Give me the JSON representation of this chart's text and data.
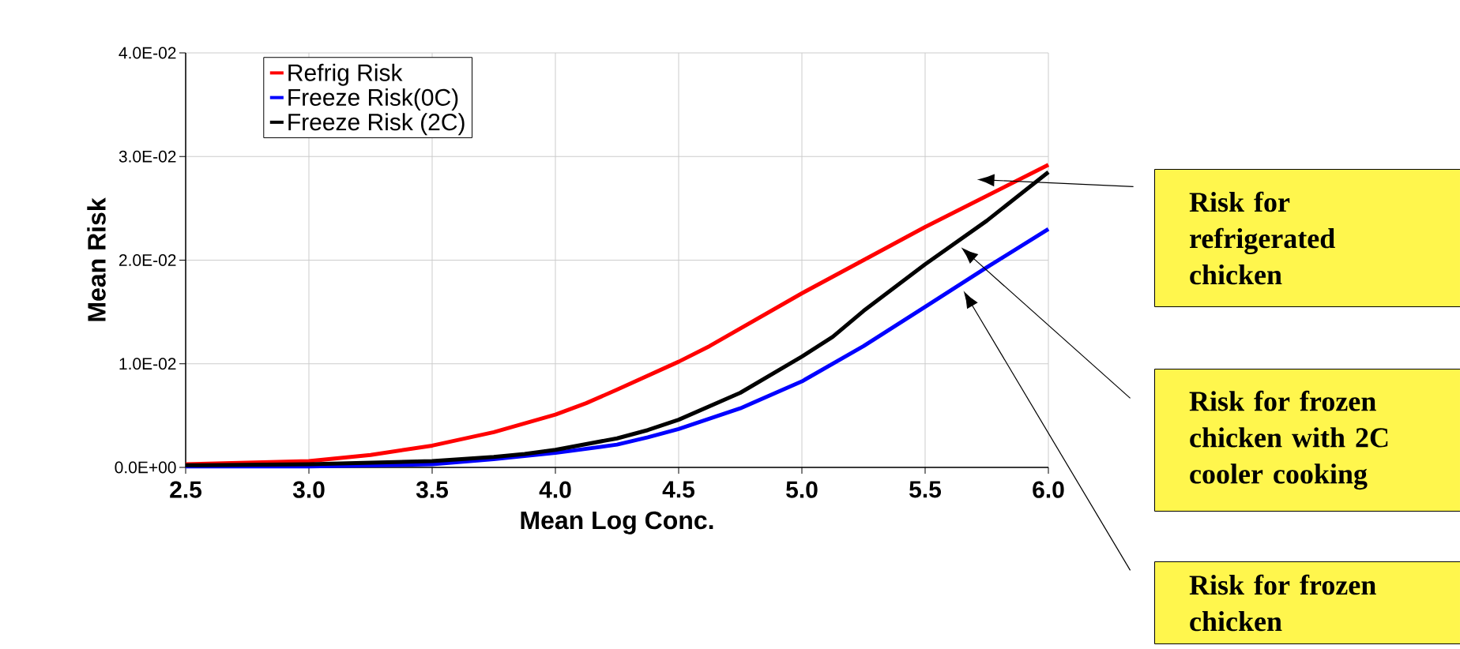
{
  "chart_data": {
    "type": "line",
    "xlabel": "Mean Log Conc.",
    "ylabel": "Mean Risk",
    "xlim": [
      2.5,
      6.0
    ],
    "ylim": [
      0,
      0.04
    ],
    "xticks": [
      2.5,
      {
        "value": 3.0,
        "label": "3.0"
      },
      3.5,
      {
        "value": 4.0,
        "label": "4.0"
      },
      4.5,
      {
        "value": 5.0,
        "label": "5.0"
      },
      5.5,
      {
        "value": 6.0,
        "label": "6.0"
      }
    ],
    "yticks": [
      {
        "value": 0,
        "label": "0.0E+00"
      },
      {
        "value": 0.01,
        "label": "1.0E-02"
      },
      {
        "value": 0.02,
        "label": "2.0E-02"
      },
      {
        "value": 0.03,
        "label": "3.0E-02"
      },
      {
        "value": 0.04,
        "label": "4.0E-02"
      }
    ],
    "grid": true,
    "legend": "top left",
    "marker": "none",
    "line_style": "solid",
    "series": [
      {
        "name": "Refrig Risk",
        "color": "#ff0000",
        "x": [
          2.5,
          3.0,
          3.25,
          3.5,
          3.75,
          4.0,
          4.125,
          4.25,
          4.5,
          4.625,
          5.0,
          5.5,
          6.0
        ],
        "values": [
          0.0003,
          0.0006,
          0.0012,
          0.0021,
          0.0034,
          0.0051,
          0.0062,
          0.0075,
          0.0102,
          0.0117,
          0.0168,
          0.0232,
          0.0292
        ]
      },
      {
        "name": "Freeze Risk(0C)",
        "color": "#0000ff",
        "x": [
          2.5,
          3.0,
          3.5,
          3.75,
          4.0,
          4.25,
          4.375,
          4.5,
          4.75,
          5.0,
          5.25,
          5.5,
          5.75,
          6.0
        ],
        "values": [
          0.0001,
          0.0001,
          0.0003,
          0.0008,
          0.0014,
          0.0022,
          0.0029,
          0.0037,
          0.0057,
          0.0083,
          0.0117,
          0.0155,
          0.0193,
          0.023
        ]
      },
      {
        "name": "Freeze Risk (2C)",
        "color": "#000000",
        "x": [
          2.5,
          3.0,
          3.5,
          3.75,
          3.875,
          4.0,
          4.25,
          4.375,
          4.5,
          4.75,
          5.0,
          5.125,
          5.25,
          5.5,
          5.75,
          6.0
        ],
        "values": [
          0.0002,
          0.0003,
          0.0006,
          0.001,
          0.0013,
          0.0017,
          0.0028,
          0.0036,
          0.0046,
          0.0072,
          0.0107,
          0.0126,
          0.0151,
          0.0196,
          0.0238,
          0.0285
        ]
      }
    ],
    "annotations": [
      "Risk for refrigerated chicken",
      "Risk for frozen chicken with 2C cooler cooking",
      "Risk for frozen chicken"
    ]
  }
}
